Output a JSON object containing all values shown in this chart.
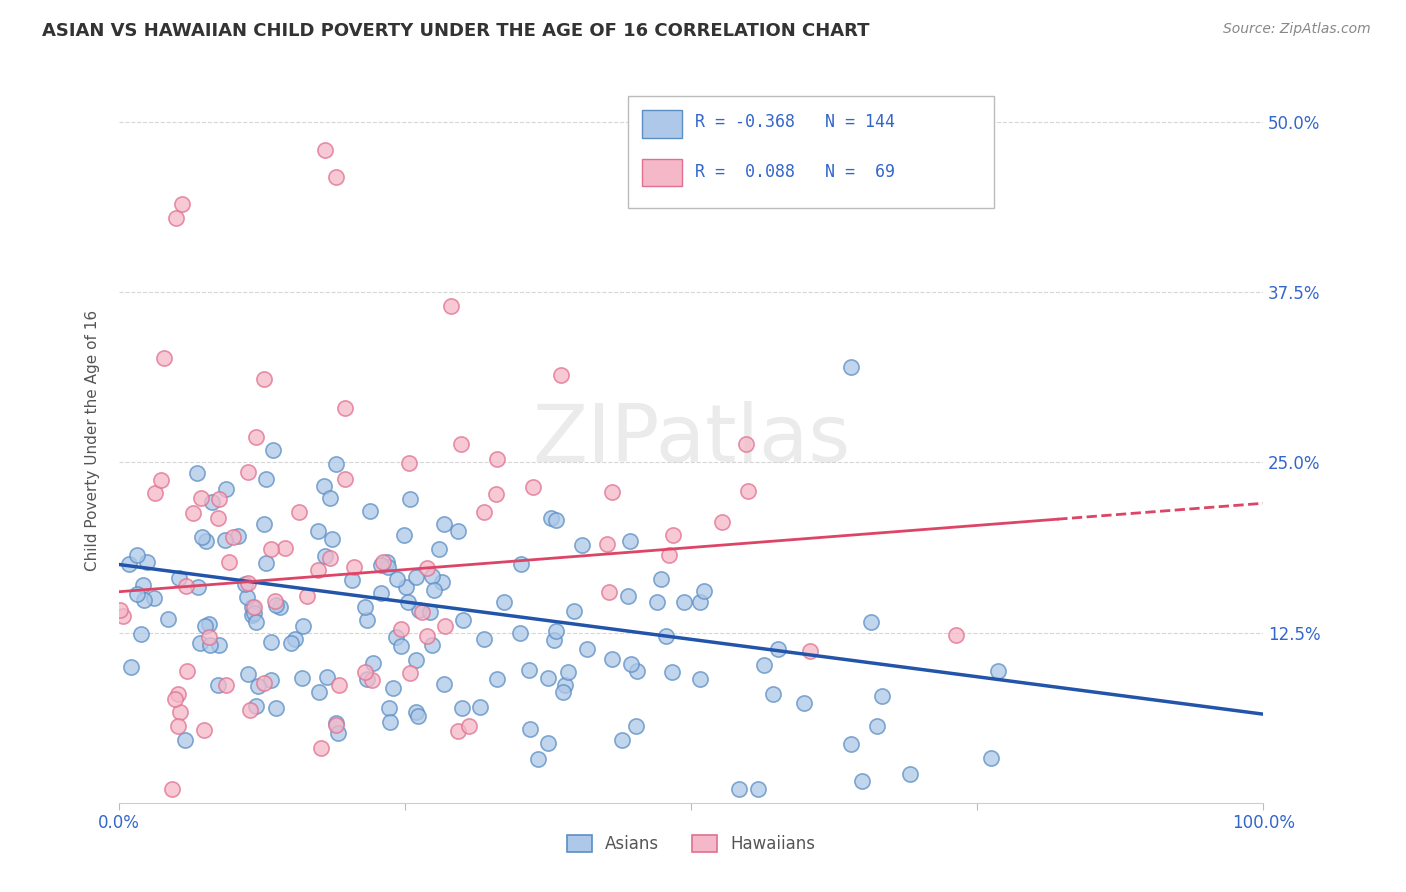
{
  "title": "ASIAN VS HAWAIIAN CHILD POVERTY UNDER THE AGE OF 16 CORRELATION CHART",
  "source": "Source: ZipAtlas.com",
  "ylabel": "Child Poverty Under the Age of 16",
  "xlim": [
    0,
    1
  ],
  "ylim": [
    0,
    0.533
  ],
  "xtick_labels": [
    "0.0%",
    "",
    "",
    "",
    "100.0%"
  ],
  "xtick_vals": [
    0.0,
    0.25,
    0.5,
    0.75,
    1.0
  ],
  "ytick_labels_right": [
    "50.0%",
    "37.5%",
    "25.0%",
    "12.5%"
  ],
  "ytick_vals_right": [
    0.5,
    0.375,
    0.25,
    0.125
  ],
  "asian_fill": "#adc8e8",
  "asian_edge": "#5b8ec4",
  "hawaiian_fill": "#f5b8c8",
  "hawaiian_edge": "#e07090",
  "asian_line_color": "#2255aa",
  "hawaiian_line_color": "#dd4466",
  "R_asian": -0.368,
  "N_asian": 144,
  "R_hawaiian": 0.088,
  "N_hawaiian": 69,
  "watermark": "ZIPatlas",
  "background_color": "#ffffff",
  "grid_color": "#cccccc",
  "legend_text_color": "#3366cc",
  "asian_intercept": 0.175,
  "asian_slope": -0.11,
  "hawaiian_intercept": 0.155,
  "hawaiian_slope": 0.065
}
